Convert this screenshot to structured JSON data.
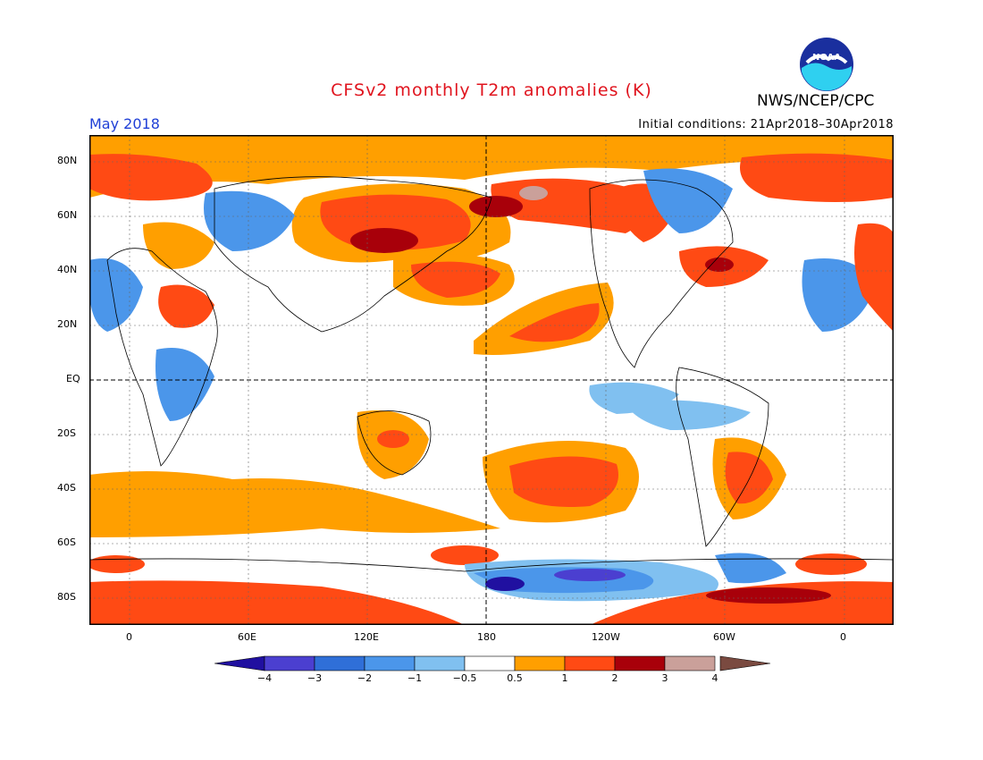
{
  "header": {
    "title": "CFSv2 monthly T2m anomalies (K)",
    "period": "May 2018",
    "initial_conditions": "Initial conditions: 21Apr2018–30Apr2018",
    "agency": "NWS/NCEP/CPC",
    "logo_text": "NOAA",
    "title_color": "#e0141e",
    "period_color": "#1f3fd6"
  },
  "map": {
    "lat_labels": [
      "80N",
      "60N",
      "40N",
      "20N",
      "EQ",
      "20S",
      "40S",
      "60S",
      "80S"
    ],
    "lon_labels": [
      "0",
      "60E",
      "120E",
      "180",
      "120W",
      "60W",
      "0"
    ]
  },
  "colorbar": {
    "labels": [
      "−4",
      "−3",
      "−2",
      "−1",
      "−0.5",
      "0.5",
      "1",
      "2",
      "3",
      "4"
    ],
    "colors": [
      "#2010a0",
      "#4b3fd0",
      "#2f6fd8",
      "#4b96ea",
      "#80c0f0",
      "#ffffff",
      "#ff9f00",
      "#ff4a14",
      "#a8000a",
      "#caa09a",
      "#7a4a40"
    ]
  }
}
